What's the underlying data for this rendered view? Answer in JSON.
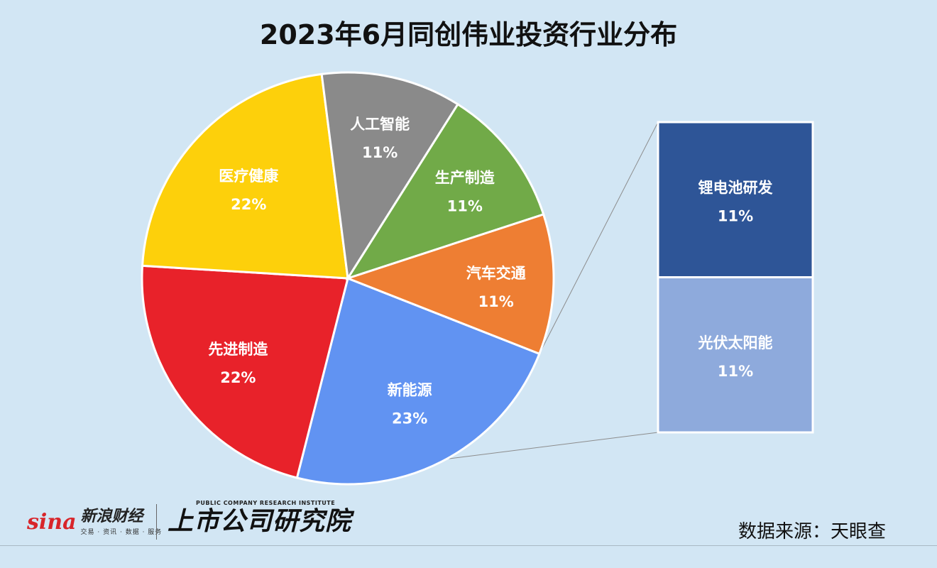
{
  "title": "2023年6月同创伟业投资行业分布",
  "chart_data": {
    "type": "pie",
    "title": "2023年6月同创伟业投资行业分布",
    "slices": [
      {
        "label": "新能源",
        "value": 23,
        "display": "23%",
        "color": "#6193f2",
        "exploded": true
      },
      {
        "label": "先进制造",
        "value": 22,
        "display": "22%",
        "color": "#e8222a"
      },
      {
        "label": "医疗健康",
        "value": 22,
        "display": "22%",
        "color": "#fdd00b"
      },
      {
        "label": "人工智能",
        "value": 11,
        "display": "11%",
        "color": "#8a8a8a"
      },
      {
        "label": "生产制造",
        "value": 11,
        "display": "11%",
        "color": "#71aa48"
      },
      {
        "label": "汽车交通",
        "value": 11,
        "display": "11%",
        "color": "#ee7e33"
      }
    ],
    "breakdown": {
      "of": "新能源",
      "segments": [
        {
          "label": "锂电池研发",
          "value": 11,
          "display": "11%",
          "color": "#2e5597"
        },
        {
          "label": "光伏太阳能",
          "value": 11,
          "display": "11%",
          "color": "#8eaadc"
        }
      ]
    }
  },
  "footer": {
    "logo_sina_word": "sina",
    "logo_sina_name": "新浪财经",
    "logo_sina_tagline": "交易 · 资讯 · 数据 · 服务",
    "logo_institute_en": "PUBLIC COMPANY RESEARCH INSTITUTE",
    "logo_institute_cn": "上市公司研究院",
    "source": "数据来源：天眼查"
  }
}
